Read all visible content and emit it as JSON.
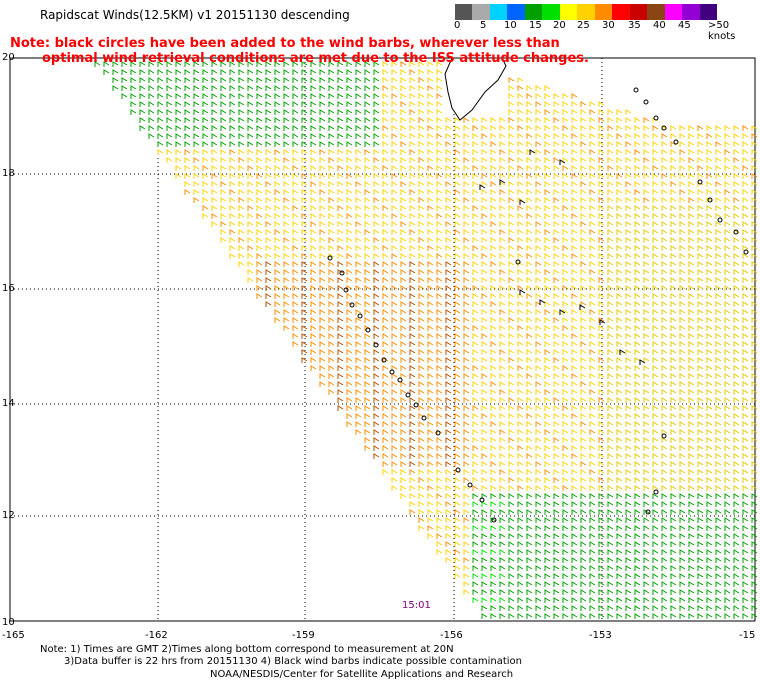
{
  "header": {
    "title": "Rapidscat Winds(12.5KM) v1 20151130 descending",
    "note_line1": "Note: black circles have been added to the wind barbs, wherever less than",
    "note_line2": "optimal wind retrieval conditions are met due to the ISS attitude changes."
  },
  "legend": {
    "colors": [
      "#555555",
      "#aaaaaa",
      "#00d2ff",
      "#0064ff",
      "#00a000",
      "#00e000",
      "#ffff00",
      "#ffd200",
      "#ff8c00",
      "#ff0000",
      "#c80000",
      "#8b4513",
      "#ff00ff",
      "#9400d3",
      "#400080"
    ],
    "labels": [
      "0",
      "5",
      "10",
      "15",
      "20",
      "25",
      "30",
      "35",
      "40",
      "45",
      ">50 knots"
    ]
  },
  "map": {
    "lat_labels": [
      "20",
      "18",
      "16",
      "14",
      "12",
      "10"
    ],
    "lon_labels": [
      "-165",
      "-162",
      "-159",
      "-156",
      "-153",
      "-15"
    ],
    "pass_time": "15:01",
    "colors": {
      "calm_green": "#00a000",
      "light_green": "#00e000",
      "yellow": "#ffd200",
      "orange": "#ff8c00",
      "brown": "#b45000",
      "contamination": "#000000"
    }
  },
  "footer": {
    "line1": "Note: 1) Times are GMT 2)Times along bottom correspond to measurement at 20N",
    "line2": "3)Data buffer is 22 hrs from 20151130 4) Black wind barbs indicate possible contamination",
    "line3": "NOAA/NESDIS/Center for Satellite Applications and Research"
  }
}
